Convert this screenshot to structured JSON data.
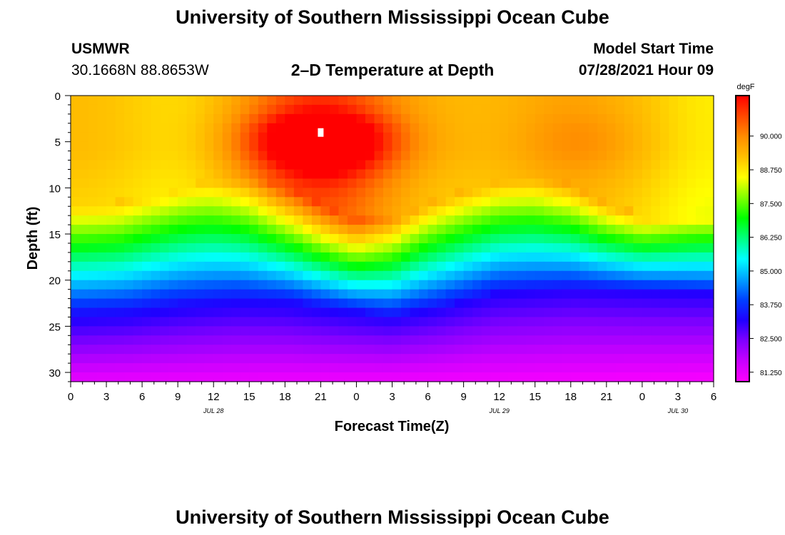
{
  "header": {
    "title": "University of Southern Mississippi Ocean Cube",
    "station": "USMWR",
    "location": "30.1668N  88.8653W",
    "plot_title": "2–D Temperature at Depth",
    "model_start_label": "Model Start Time",
    "model_start_value": "07/28/2021 Hour 09"
  },
  "footer": {
    "title": "University of Southern Mississippi Ocean Cube"
  },
  "chart_data": {
    "type": "heatmap",
    "title": "2–D Temperature at Depth",
    "xlabel": "Forecast Time(Z)",
    "ylabel": "Depth (ft)",
    "x_hours": [
      0,
      54
    ],
    "y_depth_range": [
      0,
      31
    ],
    "x_tick_hours": [
      0,
      3,
      6,
      9,
      12,
      15,
      18,
      21,
      24,
      27,
      30,
      33,
      36,
      39,
      42,
      45,
      48,
      51,
      54
    ],
    "x_tick_labels": [
      "0",
      "3",
      "6",
      "9",
      "12",
      "15",
      "18",
      "21",
      "0",
      "3",
      "6",
      "9",
      "12",
      "15",
      "18",
      "21",
      "0",
      "3",
      "6"
    ],
    "y_ticks": [
      0,
      5,
      10,
      15,
      20,
      25,
      30
    ],
    "y_tick_labels": [
      "0",
      "5",
      "10",
      "15",
      "20",
      "25",
      "30"
    ],
    "date_labels": [
      {
        "hour": 12,
        "label": "JUL 28"
      },
      {
        "hour": 36,
        "label": "JUL 29"
      },
      {
        "hour": 51,
        "label": "JUL 30"
      }
    ],
    "colorbar": {
      "units": "degF",
      "range": [
        80.9,
        91.5
      ],
      "ticks": [
        81.25,
        82.5,
        83.75,
        85.0,
        86.25,
        87.5,
        88.75,
        90.0
      ],
      "tick_labels": [
        "81.250",
        "82.500",
        "83.750",
        "85.000",
        "86.250",
        "87.500",
        "88.750",
        "90.000"
      ],
      "colors": [
        "#ff00ff",
        "#c800ff",
        "#8000ff",
        "#2000ff",
        "#0040ff",
        "#00a0ff",
        "#00ffff",
        "#00ff80",
        "#00ff00",
        "#80ff00",
        "#ffff00",
        "#ffc000",
        "#ff8c00",
        "#ff4800",
        "#ff0000"
      ]
    },
    "mixed_layer_bottom_ft": {
      "hours": [
        0,
        4,
        8,
        12,
        15,
        19,
        24,
        27,
        30,
        36,
        39,
        42,
        45,
        48,
        54
      ],
      "values": [
        11.5,
        11.5,
        10.5,
        9.0,
        8.7,
        10.3,
        13.5,
        13.2,
        11.5,
        9.2,
        8.7,
        9.5,
        11.6,
        13.0,
        13.0
      ]
    },
    "deep_layer_top_ft": {
      "hours": [
        0,
        5,
        9,
        14,
        18,
        23,
        27,
        31,
        36,
        42,
        48,
        54
      ],
      "values": [
        23.5,
        23.2,
        22.5,
        22.0,
        22.2,
        23.2,
        23.8,
        22.8,
        21.2,
        20.8,
        21.2,
        21.5
      ]
    },
    "peak_temperature_degF": 91.2,
    "peak_hour": 21,
    "peak_depth_ft": 4
  }
}
